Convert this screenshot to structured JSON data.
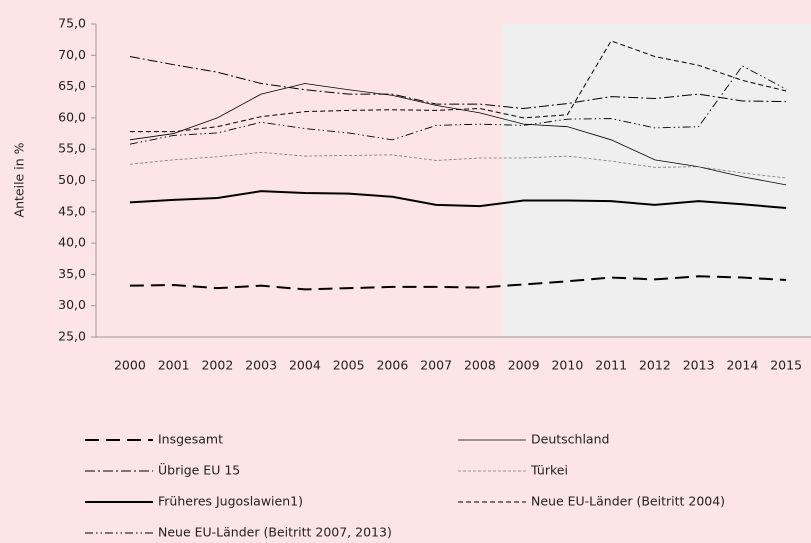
{
  "chart_data": {
    "type": "line",
    "y_label": "Anteile in %",
    "categories": [
      "2000",
      "2001",
      "2002",
      "2003",
      "2004",
      "2005",
      "2006",
      "2007",
      "2008",
      "2009",
      "2010",
      "2011",
      "2012",
      "2013",
      "2014",
      "2015"
    ],
    "shaded_from": "2009",
    "ylim": [
      25,
      75
    ],
    "yticks": [
      {
        "value": 25,
        "label": "25,0"
      },
      {
        "value": 30,
        "label": "30,0"
      },
      {
        "value": 35,
        "label": "35,0"
      },
      {
        "value": 40,
        "label": "40,0"
      },
      {
        "value": 45,
        "label": "45,0"
      },
      {
        "value": 50,
        "label": "50,0"
      },
      {
        "value": 55,
        "label": "55,0"
      },
      {
        "value": 60,
        "label": "60,0"
      },
      {
        "value": 65,
        "label": "65,0"
      },
      {
        "value": 70,
        "label": "70,0"
      },
      {
        "value": 75,
        "label": "75,0"
      }
    ],
    "series": [
      {
        "name": "Insgesamt",
        "color": "#000000",
        "dash": "14 7",
        "width": 2,
        "values": [
          33.2,
          33.3,
          32.8,
          33.2,
          32.6,
          32.8,
          33.0,
          33.0,
          32.9,
          33.4,
          33.9,
          34.5,
          34.2,
          34.7,
          34.5,
          34.1
        ]
      },
      {
        "name": "Deutschland",
        "color": "#000000",
        "dash": "none",
        "width": 0.8,
        "values": [
          56.5,
          57.5,
          60.0,
          63.8,
          65.5,
          64.5,
          63.6,
          62.0,
          60.8,
          59.0,
          58.6,
          56.5,
          53.3,
          52.2,
          50.6,
          49.3
        ]
      },
      {
        "name": "Übrige EU 15",
        "color": "#000000",
        "dash": "10 3 2 3",
        "width": 1,
        "values": [
          69.8,
          68.5,
          67.3,
          65.5,
          64.5,
          63.8,
          63.8,
          62.2,
          62.2,
          61.5,
          62.3,
          63.4,
          63.1,
          63.8,
          62.7,
          62.6
        ]
      },
      {
        "name": "Türkei",
        "color": "#777777",
        "dash": "3 2",
        "width": 0.8,
        "values": [
          52.6,
          53.3,
          53.8,
          54.5,
          53.9,
          54.0,
          54.1,
          53.2,
          53.6,
          53.6,
          53.9,
          53.1,
          52.1,
          52.2,
          51.2,
          50.4
        ]
      },
      {
        "name": "Früheres Jugoslawien1)",
        "color": "#000000",
        "dash": "none",
        "width": 2,
        "values": [
          46.5,
          46.9,
          47.2,
          48.3,
          48.0,
          47.9,
          47.4,
          46.1,
          45.9,
          46.8,
          46.8,
          46.7,
          46.1,
          46.7,
          46.2,
          45.6
        ]
      },
      {
        "name": "Neue EU-Länder (Beitritt 2004)",
        "color": "#000000",
        "dash": "5 3",
        "width": 1,
        "values": [
          57.8,
          57.8,
          58.6,
          60.2,
          61.0,
          61.2,
          61.3,
          61.2,
          61.5,
          60.0,
          60.5,
          72.3,
          69.8,
          68.4,
          66.0,
          64.3
        ]
      },
      {
        "name": "Neue EU-Länder (Beitritt 2007, 2013)",
        "color": "#000000",
        "dash": "8 3 1.5 3 1.5 3",
        "width": 0.9,
        "values": [
          55.8,
          57.2,
          57.6,
          59.3,
          58.3,
          57.6,
          56.5,
          58.8,
          59.0,
          58.8,
          59.8,
          59.9,
          58.4,
          58.6,
          68.3,
          64.6
        ]
      }
    ]
  }
}
